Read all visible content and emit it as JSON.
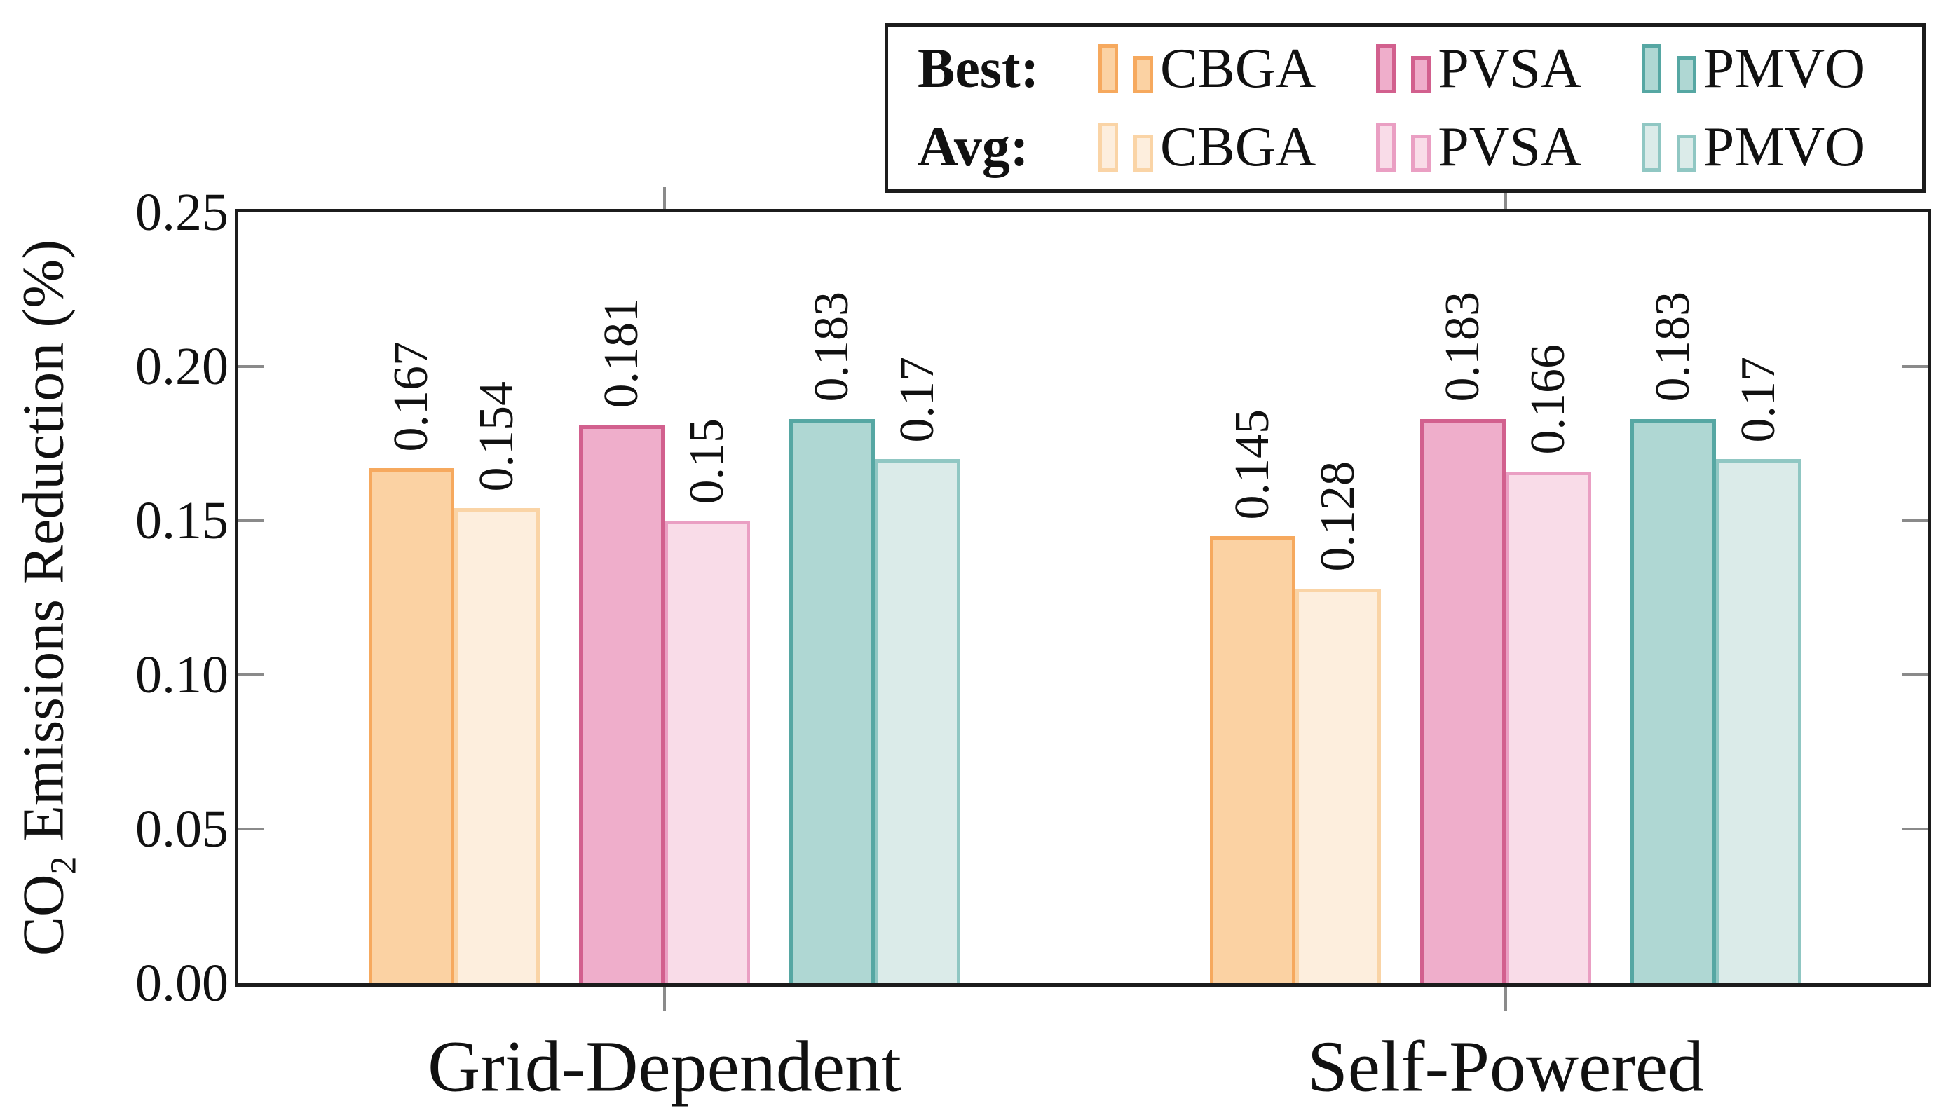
{
  "chart_data": {
    "type": "bar",
    "title": "",
    "ylabel": "CO2 Emissions Reduction (%)",
    "ylabel_parts": {
      "prefix": "CO",
      "sub": "2",
      "suffix": " Emissions Reduction (%)"
    },
    "xlabel": "",
    "categories": [
      "Grid-Dependent",
      "Self-Powered"
    ],
    "algorithms": [
      "CBGA",
      "PVSA",
      "PMVO"
    ],
    "legend": {
      "position": "top-right",
      "rows": [
        {
          "label": "Best:",
          "kind": "best"
        },
        {
          "label": "Avg:",
          "kind": "avg"
        }
      ]
    },
    "ylim": [
      0,
      0.25
    ],
    "yticks": [
      "0.00",
      "0.05",
      "0.10",
      "0.15",
      "0.20",
      "0.25"
    ],
    "grid": false,
    "series": [
      {
        "algorithm": "CBGA",
        "kind": "best",
        "values": [
          0.167,
          0.145
        ],
        "value_labels": [
          "0.167",
          "0.145"
        ],
        "fill": "#FBD2A3",
        "stroke": "#F6A95E"
      },
      {
        "algorithm": "CBGA",
        "kind": "avg",
        "values": [
          0.154,
          0.128
        ],
        "value_labels": [
          "0.154",
          "0.128"
        ],
        "fill": "#FDEEDD",
        "stroke": "#FAD4A6"
      },
      {
        "algorithm": "PVSA",
        "kind": "best",
        "values": [
          0.181,
          0.183
        ],
        "value_labels": [
          "0.181",
          "0.183"
        ],
        "fill": "#EFAECB",
        "stroke": "#D2608E"
      },
      {
        "algorithm": "PVSA",
        "kind": "avg",
        "values": [
          0.15,
          0.166
        ],
        "value_labels": [
          "0.15",
          "0.166"
        ],
        "fill": "#F9DCE8",
        "stroke": "#EA9FC3"
      },
      {
        "algorithm": "PMVO",
        "kind": "best",
        "values": [
          0.183,
          0.183
        ],
        "value_labels": [
          "0.183",
          "0.183"
        ],
        "fill": "#AFD7D3",
        "stroke": "#56A7A3"
      },
      {
        "algorithm": "PMVO",
        "kind": "avg",
        "values": [
          0.17,
          0.17
        ],
        "value_labels": [
          "0.17",
          "0.17"
        ],
        "fill": "#DBEBE9",
        "stroke": "#90C7C3"
      }
    ],
    "colors": {
      "frame": "#1C1C1C",
      "tick": "#8A8A8A",
      "text": "#111111",
      "background": "#FFFFFF"
    }
  }
}
